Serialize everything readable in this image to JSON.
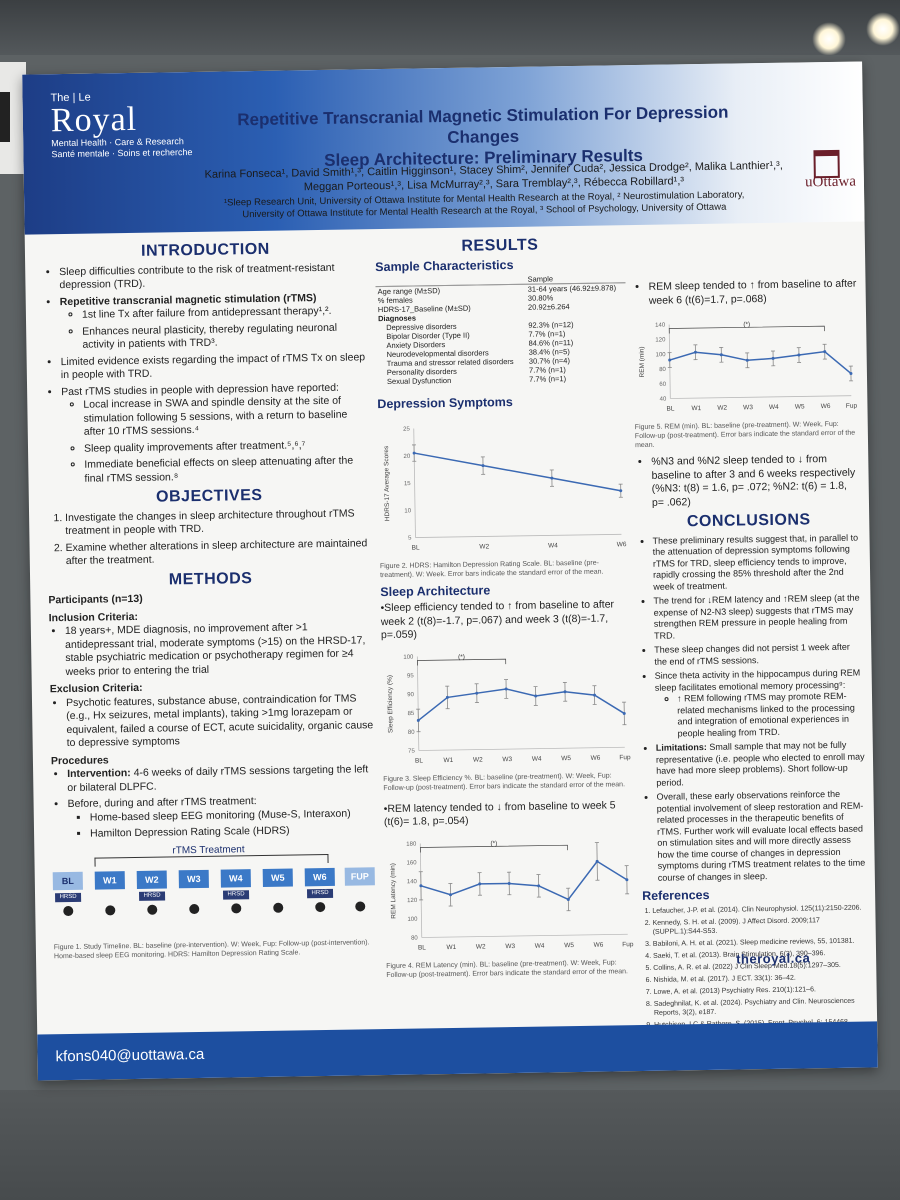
{
  "header": {
    "logo_the": "The",
    "logo_le": "Le",
    "logo_name": "Royal",
    "logo_sub1": "Mental Health · Care & Research",
    "logo_sub2": "Santé mentale · Soins et recherche",
    "title_line1": "Repetitive Transcranial Magnetic Stimulation For Depression Changes",
    "title_line2": "Sleep Architecture: Preliminary Results",
    "authors_line1": "Karina Fonseca¹, David Smith¹,³, Caitlin Higginson¹, Stacey Shim², Jennifer Cuda², Jessica Drodge², Malika Lanthier¹,³,",
    "authors_line2": "Meggan Porteous¹,³, Lisa McMurray²,³, Sara Tremblay²,³, Rébecca Robillard¹,³",
    "affil_line1": "¹Sleep Research Unit, University of Ottawa Institute for Mental Health Research at the Royal, ² Neurostimulation Laboratory,",
    "affil_line2": "University of Ottawa Institute for Mental Health Research at the Royal, ³ School of Psychology, University of Ottawa",
    "uottawa": "uOttawa"
  },
  "introduction": {
    "heading": "INTRODUCTION",
    "b1": "Sleep difficulties contribute to the risk of treatment-resistant depression (TRD).",
    "b2": "Repetitive transcranial magnetic stimulation (rTMS)",
    "b2s1": "1st line Tx after failure from antidepressant therapy¹,².",
    "b2s2": "Enhances neural plasticity, thereby regulating neuronal activity in patients with TRD³.",
    "b3": "Limited evidence exists regarding the impact of rTMS Tx on sleep in people with TRD.",
    "b4": "Past rTMS studies in people with depression have reported:",
    "b4s1": "Local increase in SWA and spindle density at the site of stimulation following 5 sessions, with a return to baseline after 10 rTMS sessions.⁴",
    "b4s2": "Sleep quality improvements after treatment.⁵,⁶,⁷",
    "b4s3": "Immediate beneficial effects on sleep attenuating after the final rTMS session.⁸"
  },
  "objectives": {
    "heading": "OBJECTIVES",
    "o1": "Investigate the changes in sleep architecture throughout rTMS treatment in people with TRD.",
    "o2": "Examine whether alterations in sleep architecture are maintained after the treatment."
  },
  "methods": {
    "heading": "METHODS",
    "participants": "Participants (n=13)",
    "inclusion_title": "Inclusion Criteria:",
    "inclusion": "18 years+, MDE diagnosis, no improvement after >1 antidepressant trial, moderate symptoms (>15) on the HRSD-17, stable psychiatric medication or psychotherapy regimen for ≥4 weeks prior to entering the trial",
    "exclusion_title": "Exclusion Criteria:",
    "exclusion": "Psychotic features, substance abuse, contraindication for TMS (e.g., Hx seizures, metal implants), taking >1mg lorazepam or equivalent, failed a course of ECT, acute suicidality, organic cause to depressive symptoms",
    "procedures_title": "Procedures",
    "proc1_bold": "Intervention:",
    "proc1": " 4-6 weeks of daily rTMS sessions targeting the left or bilateral DLPFC.",
    "proc2": "Before, during and after rTMS treatment:",
    "proc2s1": "Home-based sleep EEG monitoring (Muse-S, Interaxon)",
    "proc2s2": "Hamilton Depression Rating Scale (HDRS)",
    "timeline_label": "rTMS Treatment",
    "timeline_boxes": [
      "BL",
      "W1",
      "W2",
      "W3",
      "W4",
      "W5",
      "W6",
      "FUP"
    ],
    "hrsd": "HRSD",
    "fig1_caption": "Figure 1. Study Timeline. BL: baseline (pre-intervention). W: Week, Fup: Follow-up (post-intervention). Home-based sleep EEG monitoring. HDRS: Hamilton Depression Rating Scale."
  },
  "results": {
    "heading": "RESULTS",
    "sample_title": "Sample Characteristics",
    "sample_col": "Sample",
    "rows": [
      {
        "label": "Age range (M±SD)",
        "value": "31-64 years (46.92±9.878)"
      },
      {
        "label": "% females",
        "value": "30.80%"
      },
      {
        "label": "HDRS-17_Baseline (M±SD)",
        "value": "20.92±6.264"
      },
      {
        "label": "Diagnoses",
        "value": ""
      },
      {
        "label": "Depressive disorders",
        "value": "92.3% (n=12)"
      },
      {
        "label": "Bipolar Disorder (Type II)",
        "value": "7.7% (n=1)"
      },
      {
        "label": "Anxiety Disorders",
        "value": "84.6% (n=11)"
      },
      {
        "label": "Neurodevelopmental disorders",
        "value": "38.4% (n=5)"
      },
      {
        "label": "Trauma and stressor related disorders",
        "value": "30.7% (n=4)"
      },
      {
        "label": "Personality disorders",
        "value": "7.7% (n=1)"
      },
      {
        "label": "Sexual Dysfunction",
        "value": "7.7% (n=1)"
      }
    ],
    "depression_title": "Depression Symptoms",
    "fig2_caption": "Figure 2. HDRS: Hamilton Depression Rating Scale. BL: baseline (pre-treatment). W: Week. Error bars indicate the standard error of the mean.",
    "sleep_title": "Sleep Architecture",
    "se_text": "•Sleep efficiency tended to ↑ from baseline to after week 2 (t(8)=-1.7, p=.067) and week 3 (t(8)=-1.7, p=.059)",
    "fig3_caption": "Figure 3. Sleep Efficiency %. BL: baseline (pre-treatment). W: Week, Fup: Follow-up (post-treatment). Error bars indicate the standard error of the mean.",
    "rl_text": "•REM latency tended to ↓ from baseline to week 5 (t(6)= 1.8, p=.054)",
    "fig4_caption": "Figure 4. REM Latency (min). BL: baseline (pre-treatment). W: Week, Fup: Follow-up (post-treatment). Error bars indicate the standard error of the mean.",
    "rem_text": "REM sleep tended to ↑ from baseline to after week 6 (t(6)=1.7, p=.068)",
    "fig5_caption": "Figure 5. REM (min). BL: baseline (pre-treatment). W: Week, Fup: Follow-up (post-treatment). Error bars indicate the standard error of the mean.",
    "n3_text": "%N3 and %N2 sleep tended to ↓ from baseline to after 3 and 6 weeks respectively (%N3: t(8) = 1.6, p= .072; %N2: t(6) = 1.8, p= .062)"
  },
  "conclusions": {
    "heading": "CONCLUSIONS",
    "c1": "These preliminary results suggest that, in parallel to the attenuation of depression symptoms following rTMS for TRD, sleep efficiency tends to improve, rapidly crossing the 85% threshold after the 2nd week of treatment.",
    "c2": "The trend for ↓REM latency and ↑REM sleep (at the expense of N2-N3 sleep) suggests that rTMS may strengthen REM pressure in people healing from TRD.",
    "c3": "These sleep changes did not persist 1 week after the end of rTMS sessions.",
    "c4": "Since theta activity in the hippocampus during REM sleep facilitates emotional memory processing⁹:",
    "c4s1": "↑ REM following rTMS may promote REM-related mechanisms linked to the processing and integration of emotional experiences in people healing from TRD.",
    "c5_bold": "Limitations:",
    "c5": " Small sample that may not be fully representative (i.e. people who elected to enroll may have had more sleep problems). Short follow-up period.",
    "c6": "Overall, these early observations reinforce the potential involvement of sleep restoration and REM-related processes in the therapeutic benefits of rTMS. Further work will evaluate local effects based on stimulation sites and will more directly assess how the time course of changes in depression symptoms during rTMS treatment relates to the time course of changes in sleep."
  },
  "references": {
    "heading": "References",
    "items": [
      "Lefaucher, J-P. et al. (2014). Clin Neurophysiol. 125(11):2150-2206.",
      "Kennedy, S. H. et al. (2009). J Affect Disord. 2009;117 (SUPPL.1):S44-S53.",
      "Babiloni, A. H. et al. (2021). Sleep medicine reviews, 55, 101381.",
      "Saeki, T. et al. (2013). Brain Stimulation, 6(3), 390–396.",
      "Collins, A. R. et al. (2022) J Clin Sleep Med.18(5):1297–305.",
      "Nishida, M. et al. (2017). J ECT. 33(1): 36–42.",
      "Lowe, A. et al. (2013) Psychiatry Res. 210(1):121–6.",
      "Sadeghnilat, K. et al. (2024). Psychiatry and Clin. Neurosciences Reports, 3(2), e187.",
      "Hutchison, I.C & Rathore, S. (2015). Front. Psychol. 6: 154468"
    ]
  },
  "footer": {
    "email": "kfons040@uottawa.ca",
    "site": "theroyal.ca"
  },
  "chart_data": [
    {
      "type": "line",
      "categories": [
        "BL",
        "W2",
        "W4",
        "W6"
      ],
      "values": [
        20.5,
        18,
        15.5,
        13
      ],
      "errors": [
        1.5,
        1.6,
        1.5,
        1.2
      ],
      "ylabel": "HDRS-17 Average Scores",
      "ylim": [
        5,
        25
      ],
      "yticks": [
        "5",
        "10",
        "15",
        "20",
        "25"
      ]
    },
    {
      "type": "line",
      "categories": [
        "BL",
        "W1",
        "W2",
        "W3",
        "W4",
        "W5",
        "W6",
        "Fup"
      ],
      "values": [
        83,
        89,
        90,
        91,
        89,
        90,
        89,
        84
      ],
      "errors": [
        3,
        3,
        2.5,
        2.5,
        2.5,
        2.5,
        2.5,
        3
      ],
      "ylabel": "Sleep Efficiency (%)",
      "ylim": [
        75,
        100
      ],
      "yticks": [
        "75",
        "80",
        "85",
        "90",
        "95",
        "100"
      ],
      "annotation": "(*)"
    },
    {
      "type": "line",
      "categories": [
        "BL",
        "W1",
        "W2",
        "W3",
        "W4",
        "W5",
        "W6",
        "Fup"
      ],
      "values": [
        135,
        125,
        136,
        136,
        133,
        118,
        158,
        138
      ],
      "errors": [
        15,
        12,
        12,
        12,
        12,
        12,
        20,
        15
      ],
      "ylabel": "REM Latency (min)",
      "ylim": [
        80,
        180
      ],
      "yticks": [
        "80",
        "100",
        "120",
        "140",
        "160",
        "180"
      ],
      "annotation": "(*)"
    },
    {
      "type": "line",
      "categories": [
        "BL",
        "W1",
        "W2",
        "W3",
        "W4",
        "W5",
        "W6",
        "Fup"
      ],
      "values": [
        92,
        102,
        98,
        90,
        92,
        96,
        100,
        70
      ],
      "errors": [
        10,
        10,
        10,
        10,
        10,
        10,
        10,
        10
      ],
      "ylabel": "REM (min)",
      "ylim": [
        40,
        140
      ],
      "yticks": [
        "40",
        "60",
        "80",
        "100",
        "120",
        "140"
      ],
      "annotation": "(*)"
    }
  ]
}
